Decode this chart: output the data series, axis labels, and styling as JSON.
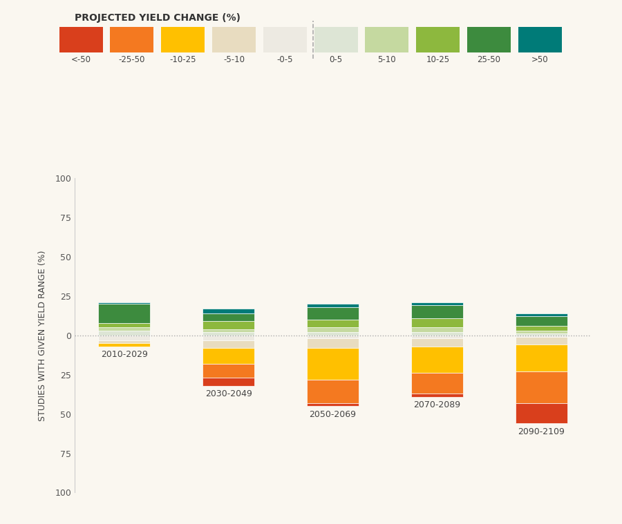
{
  "categories": [
    "2010-2029",
    "2030-2049",
    "2050-2069",
    "2070-2089",
    "2090-2109"
  ],
  "legend_labels": [
    "<-50",
    "-25-50",
    "-10-25",
    "-5-10",
    "-0-5",
    "0-5",
    "5-10",
    "10-25",
    "25-50",
    ">50"
  ],
  "legend_colors": [
    "#d93f1c",
    "#f47920",
    "#ffc000",
    "#e8dcc0",
    "#edeae2",
    "#dde5d5",
    "#c5d9a0",
    "#8db83e",
    "#3d8b3e",
    "#007b78"
  ],
  "ylabel": "STUDIES WITH GIVEN YIELD RANGE (%)",
  "legend_title": "PROJECTED YIELD CHANGE (%)",
  "background_color": "#faf7f0",
  "bar_width": 0.5,
  "pos_segments": {
    "2010-2029": [
      3,
      2,
      3,
      12,
      1
    ],
    "2030-2049": [
      2,
      2,
      5,
      5,
      3
    ],
    "2050-2069": [
      2,
      3,
      5,
      8,
      2
    ],
    "2070-2089": [
      2,
      3,
      6,
      8,
      2
    ],
    "2090-2109": [
      1,
      2,
      3,
      6,
      2
    ]
  },
  "neg_segments": {
    "2010-2029": [
      3,
      2,
      2,
      0,
      0
    ],
    "2030-2049": [
      3,
      5,
      10,
      9,
      5
    ],
    "2050-2069": [
      2,
      6,
      20,
      15,
      2
    ],
    "2070-2089": [
      2,
      5,
      17,
      13,
      2
    ],
    "2090-2109": [
      1,
      5,
      17,
      20,
      13
    ]
  },
  "ylim": [
    -100,
    100
  ],
  "yticks": [
    -100,
    -75,
    -50,
    -25,
    0,
    25,
    50,
    75,
    100
  ],
  "yticklabels": [
    "100",
    "75",
    "50",
    "25",
    "0",
    "25",
    "50",
    "75",
    "100"
  ]
}
